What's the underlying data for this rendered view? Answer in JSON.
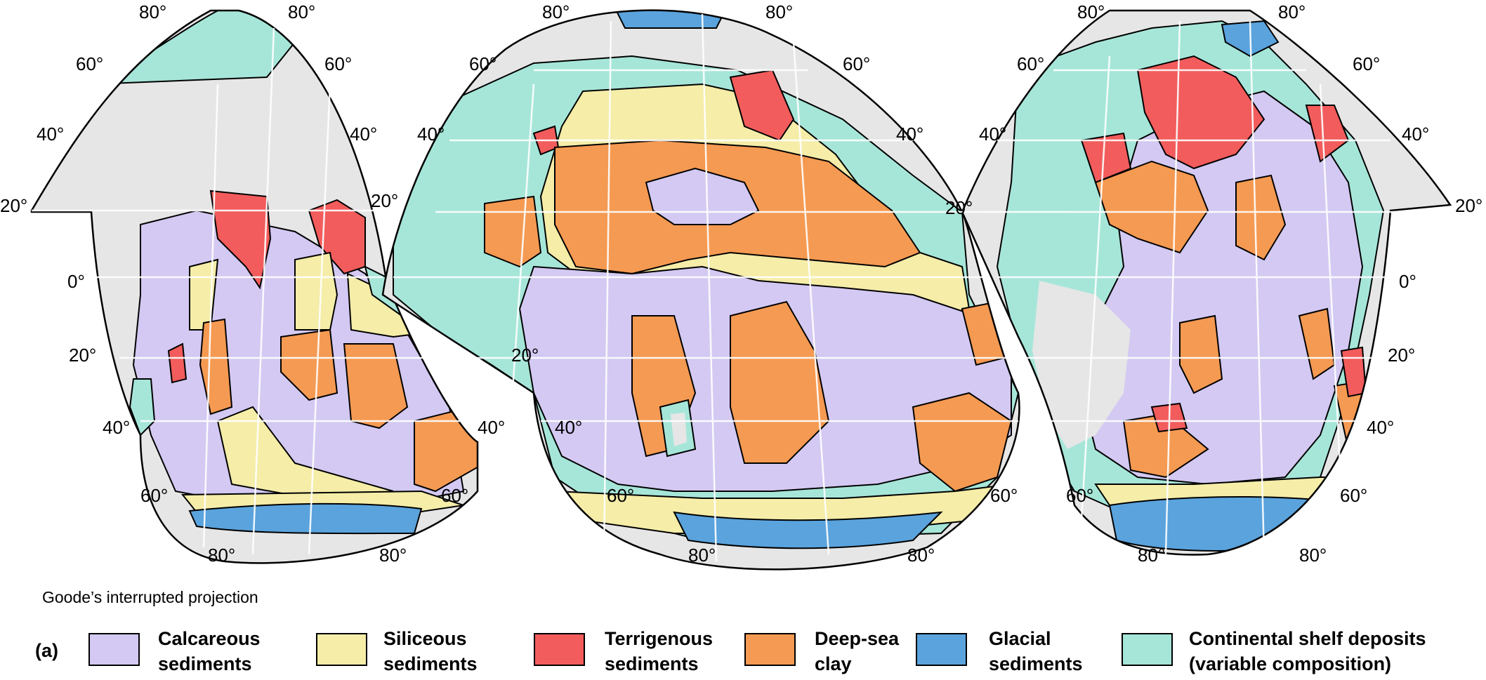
{
  "projection_caption": "Goode’s interrupted projection",
  "panel_tag": "(a)",
  "latitude_labels": {
    "n80": "80°",
    "n60": "60°",
    "n40": "40°",
    "n20": "20°",
    "eq": "0°",
    "s20": "20°",
    "s40": "40°",
    "s60": "60°",
    "s80": "80°"
  },
  "legend": [
    {
      "line1": "Calcareous",
      "line2": "sediments",
      "color": "#d3c9f2"
    },
    {
      "line1": "Siliceous",
      "line2": "sediments",
      "color": "#f5eda8"
    },
    {
      "line1": "Terrigenous",
      "line2": "sediments",
      "color": "#f25c5c"
    },
    {
      "line1": "Deep-sea",
      "line2": "clay",
      "color": "#f59a52"
    },
    {
      "line1": "Glacial",
      "line2": "sediments",
      "color": "#5aa3dd"
    },
    {
      "line1": "Continental shelf deposits",
      "line2": "(variable composition)",
      "color": "#a6e6d9"
    }
  ],
  "colors": {
    "land": "#e6e6e6",
    "calcareous": "#d3c9f2",
    "siliceous": "#f5eda8",
    "terrigenous": "#f25c5c",
    "clay": "#f59a52",
    "glacial": "#5aa3dd",
    "shelf": "#a6e6d9"
  }
}
